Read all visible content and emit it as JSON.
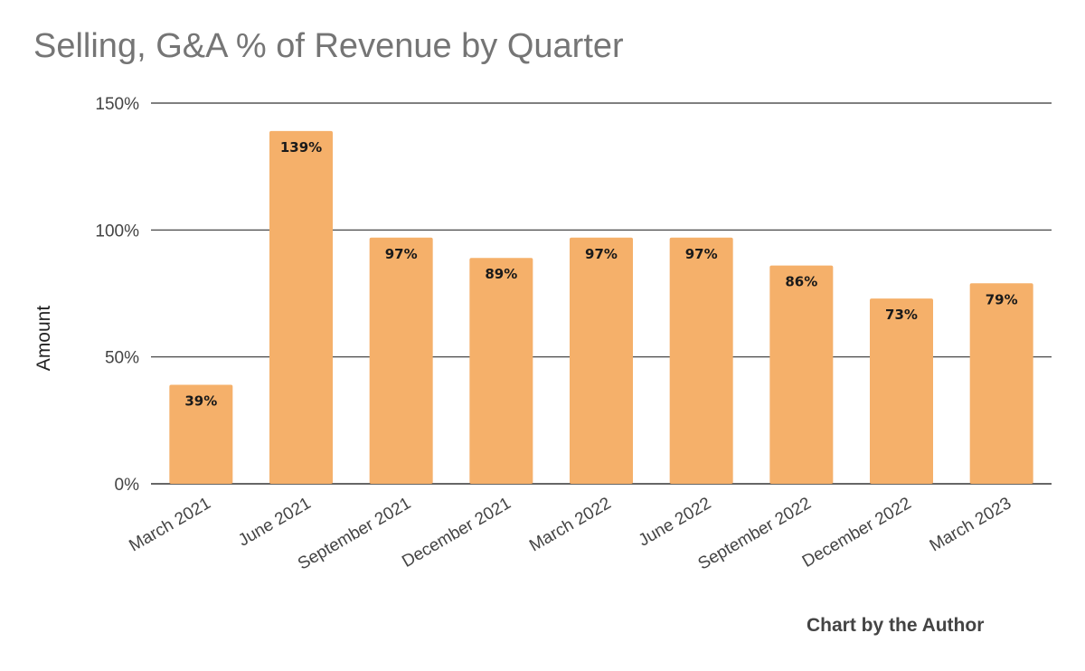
{
  "title": "Selling, G&A % of Revenue by Quarter",
  "credit": "Chart by the Author",
  "chart_data": {
    "type": "bar",
    "title": "Selling, G&A % of Revenue by Quarter",
    "xlabel": "",
    "ylabel": "Amount",
    "ylim": [
      0,
      150
    ],
    "yticks": [
      0,
      50,
      100,
      150
    ],
    "ytick_labels": [
      "0%",
      "50%",
      "100%",
      "150%"
    ],
    "grid": true,
    "legend": "none",
    "categories": [
      "March 2021",
      "June 2021",
      "September 2021",
      "December 2021",
      "March 2022",
      "June 2022",
      "September 2022",
      "December 2022",
      "March 2023"
    ],
    "values": [
      39,
      139,
      97,
      89,
      97,
      97,
      86,
      73,
      79
    ],
    "data_labels": [
      "39%",
      "139%",
      "97%",
      "89%",
      "97%",
      "97%",
      "86%",
      "73%",
      "79%"
    ],
    "bar_color": "#f5b06a"
  }
}
